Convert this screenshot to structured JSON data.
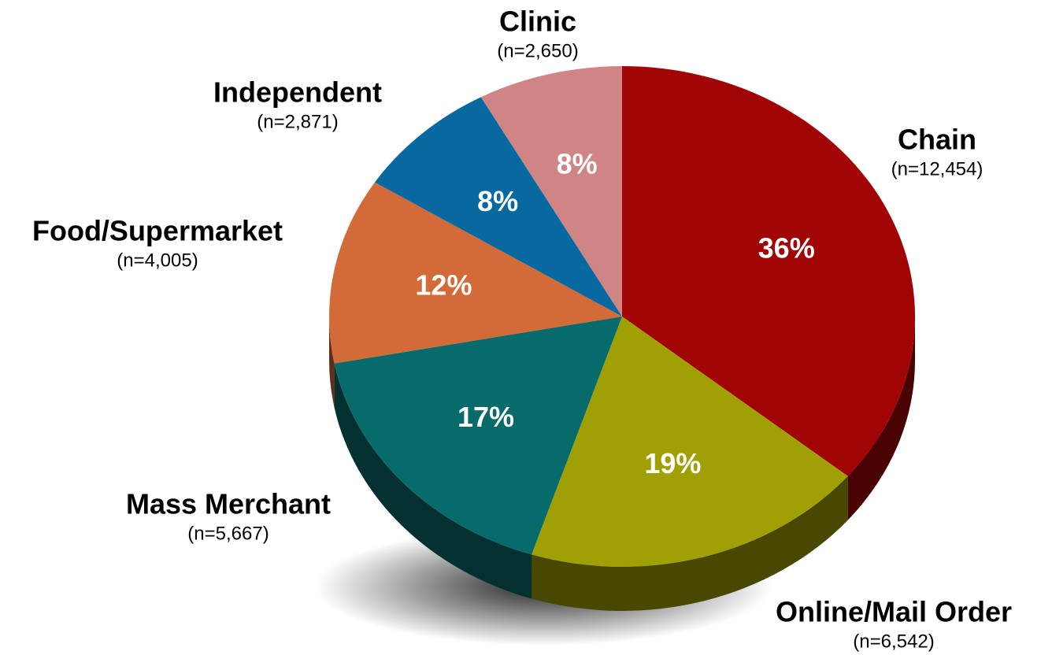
{
  "chart_data": {
    "type": "pie",
    "categories": [
      "Chain",
      "Online/Mail Order",
      "Mass Merchant",
      "Food/Supermarket",
      "Independent",
      "Clinic"
    ],
    "count_labels": [
      "(n=12,454)",
      "(n=6,542)",
      "(n=5,667)",
      "(n=4,005)",
      "(n=2,871)",
      "(n=2,650)"
    ],
    "values": [
      36,
      19,
      17,
      12,
      8,
      8
    ],
    "value_labels": [
      "36%",
      "19%",
      "17%",
      "12%",
      "8%",
      "8%"
    ],
    "colors": [
      "#a00404",
      "#a0a004",
      "#076b6b",
      "#d26b38",
      "#0869a0",
      "#d08585"
    ]
  }
}
